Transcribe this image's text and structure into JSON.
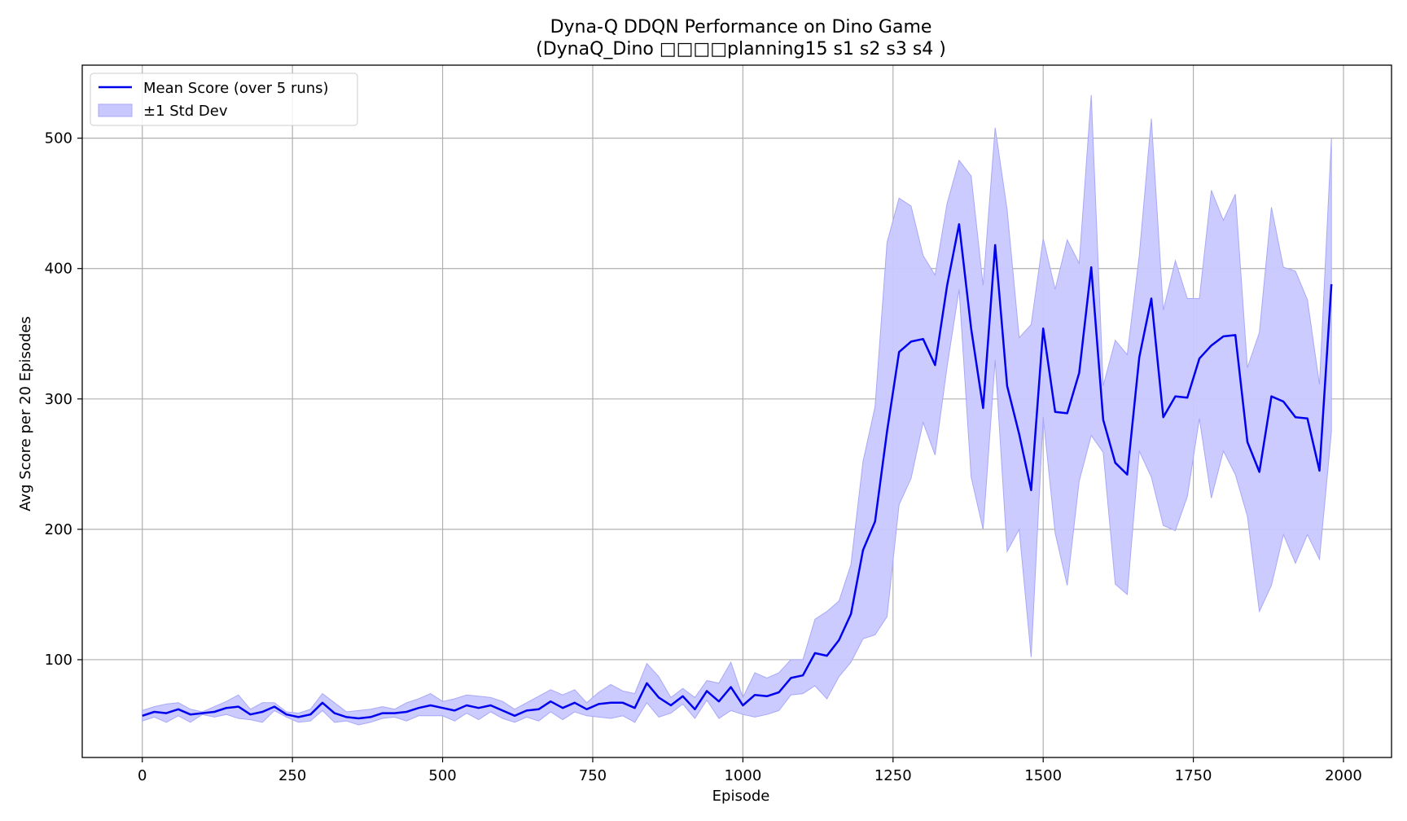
{
  "chart_data": {
    "type": "line",
    "title": "Dyna-Q DDQN Performance on Dino Game",
    "subtitle": "(DynaQ_Dino □□□□planning15 s1 s2 s3 s4 )",
    "xlabel": "Episode",
    "ylabel": "Avg Score per 20 Episodes",
    "xlim": [
      -100,
      2080
    ],
    "ylim": [
      25,
      556
    ],
    "xticks": [
      0,
      250,
      500,
      750,
      1000,
      1250,
      1500,
      1750,
      2000
    ],
    "yticks": [
      100,
      200,
      300,
      400,
      500
    ],
    "grid": true,
    "legend_position": "upper-left",
    "colors": {
      "mean_line": "#0000ee",
      "band_fill": "#c8c8ff",
      "band_edge": "#a8a8f8",
      "grid": "#b0b0b0"
    },
    "series": [
      {
        "name": "Mean Score (over 5 runs)",
        "x": [
          0,
          20,
          40,
          60,
          80,
          100,
          120,
          140,
          160,
          180,
          200,
          220,
          240,
          260,
          280,
          300,
          320,
          340,
          360,
          380,
          400,
          420,
          440,
          460,
          480,
          500,
          520,
          540,
          560,
          580,
          600,
          620,
          640,
          660,
          680,
          700,
          720,
          740,
          760,
          780,
          800,
          820,
          840,
          860,
          880,
          900,
          920,
          940,
          960,
          980,
          1000,
          1020,
          1040,
          1060,
          1080,
          1100,
          1120,
          1140,
          1160,
          1180,
          1200,
          1220,
          1240,
          1260,
          1280,
          1300,
          1320,
          1340,
          1360,
          1380,
          1400,
          1420,
          1440,
          1460,
          1480,
          1500,
          1520,
          1540,
          1560,
          1580,
          1600,
          1620,
          1640,
          1660,
          1680,
          1700,
          1720,
          1740,
          1760,
          1780,
          1800,
          1820,
          1840,
          1860,
          1880,
          1900,
          1920,
          1940,
          1960,
          1980
        ],
        "y": [
          57,
          60,
          59,
          62,
          58,
          59,
          60,
          63,
          64,
          58,
          60,
          64,
          58,
          56,
          58,
          67,
          59,
          56,
          55,
          56,
          59,
          59,
          60,
          63,
          65,
          63,
          61,
          65,
          63,
          65,
          61,
          57,
          61,
          62,
          68,
          63,
          67,
          62,
          66,
          67,
          67,
          63,
          82,
          71,
          65,
          72,
          62,
          76,
          68,
          79,
          65,
          73,
          72,
          75,
          86,
          88,
          105,
          103,
          115,
          135,
          184,
          206,
          275,
          336,
          344,
          346,
          326,
          387,
          434,
          354,
          293,
          418,
          310,
          273,
          230,
          354,
          290,
          289,
          320,
          401,
          284,
          251,
          242,
          332,
          377,
          286,
          302,
          301,
          331,
          341,
          348,
          349,
          267,
          244,
          302,
          298,
          286,
          285,
          245,
          388
        ]
      }
    ],
    "band": {
      "name": "±1 Std Dev",
      "upper": [
        61,
        64,
        66,
        67,
        62,
        60,
        64,
        68,
        73,
        62,
        67,
        67,
        60,
        59,
        62,
        74,
        67,
        60,
        61,
        62,
        64,
        62,
        67,
        70,
        74,
        68,
        70,
        73,
        72,
        71,
        68,
        62,
        67,
        72,
        77,
        73,
        77,
        67,
        75,
        81,
        76,
        74,
        97,
        87,
        71,
        78,
        71,
        84,
        82,
        98,
        71,
        90,
        86,
        90,
        100,
        100,
        131,
        137,
        145,
        173,
        252,
        294,
        420,
        454,
        448,
        410,
        395,
        450,
        483,
        471,
        387,
        508,
        445,
        347,
        357,
        423,
        384,
        422,
        404,
        533,
        310,
        345,
        334,
        410,
        515,
        368,
        406,
        377,
        377,
        460,
        437,
        457,
        324,
        351,
        447,
        401,
        398,
        376,
        311,
        500
      ],
      "lower": [
        53,
        56,
        52,
        57,
        52,
        58,
        56,
        58,
        55,
        54,
        52,
        61,
        56,
        52,
        53,
        61,
        52,
        53,
        50,
        52,
        55,
        56,
        53,
        57,
        57,
        57,
        53,
        59,
        54,
        60,
        55,
        52,
        56,
        53,
        60,
        54,
        60,
        57,
        56,
        55,
        57,
        52,
        67,
        56,
        59,
        66,
        55,
        69,
        55,
        61,
        58,
        56,
        58,
        61,
        73,
        74,
        80,
        70,
        87,
        98,
        116,
        119,
        133,
        219,
        239,
        282,
        257,
        325,
        384,
        240,
        200,
        330,
        183,
        200,
        102,
        286,
        197,
        157,
        237,
        272,
        259,
        158,
        150,
        260,
        240,
        203,
        199,
        225,
        285,
        224,
        260,
        242,
        210,
        137,
        157,
        196,
        174,
        196,
        177,
        275
      ]
    }
  }
}
